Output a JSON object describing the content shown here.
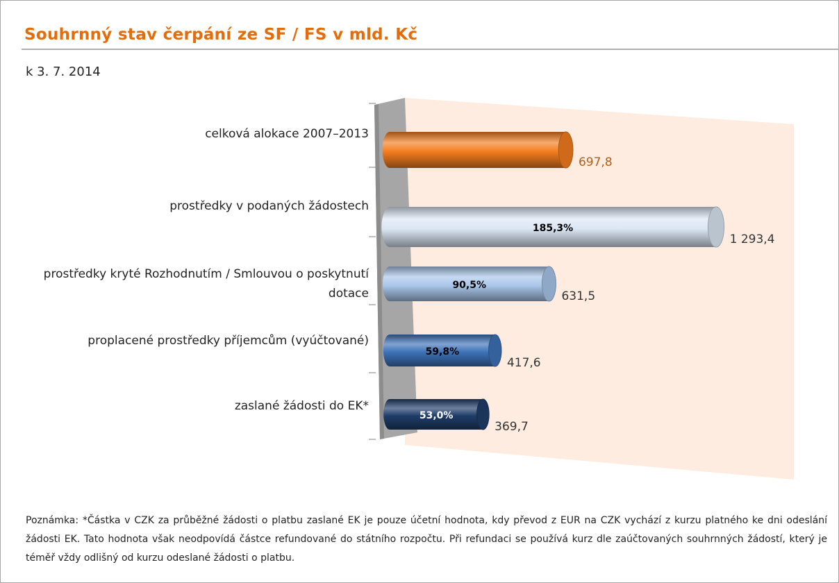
{
  "chart_data": {
    "type": "bar",
    "orientation": "horizontal",
    "title": "Souhrnný stav čerpání ze SF / FS v mld. Kč",
    "subtitle": "k  3. 7. 2014",
    "categories": [
      "celková alokace 2007–2013",
      "prostředky v podaných žádostech",
      "prostředky kryté Rozhodnutím / Smlouvou o poskytnutí dotace",
      "proplacené prostředky příjemcům (vyúčtované)",
      "zaslané žádosti do EK*"
    ],
    "values": [
      697.8,
      1293.4,
      631.5,
      417.6,
      369.7
    ],
    "value_labels": [
      "697,8",
      "1 293,4",
      "631,5",
      "417,6",
      "369,7"
    ],
    "share_labels": [
      null,
      "185,3%",
      "90,5%",
      "59,8%",
      "53,0%"
    ],
    "colors": [
      "#f47d1e",
      "#dbe6f4",
      "#a9c6ea",
      "#3d72b8",
      "#1f3d6a"
    ],
    "value_label_colors": [
      "#b85c14",
      "#333333",
      "#333333",
      "#333333",
      "#333333"
    ]
  },
  "note": "Poznámka: *Částka v CZK za průběžné žádosti o platbu zaslané EK je pouze účetní hodnota, kdy převod z EUR na CZK vychází z kurzu platného ke dni odeslání žádosti EK. Tato hodnota však neodpovídá částce refundované do státního rozpočtu. Při refundaci se používá kurz dle zaúčtovaných souhrnných žádostí, který je téměř vždy odlišný od kurzu odeslané žádosti o platbu."
}
